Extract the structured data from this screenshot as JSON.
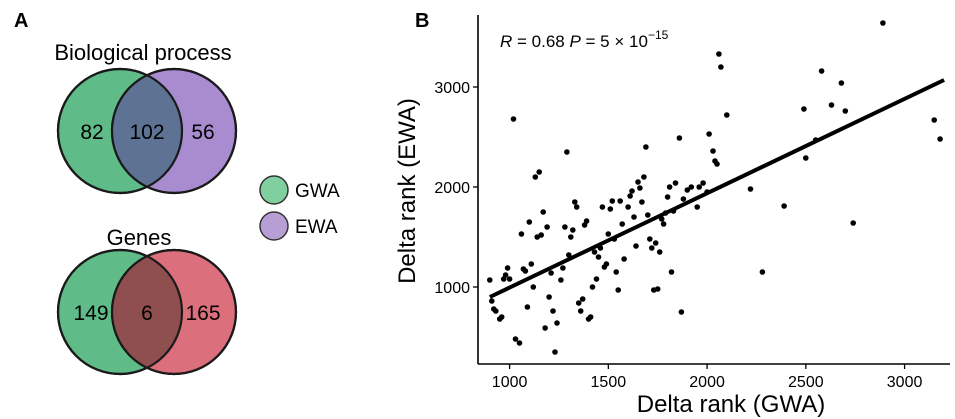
{
  "panel_a": {
    "label": "A",
    "venn_top": {
      "title": "Biological process",
      "left_only": "82",
      "overlap": "102",
      "right_only": "56"
    },
    "venn_bottom": {
      "title": "Genes",
      "left_only": "149",
      "overlap": "6",
      "right_only": "165"
    },
    "legend": [
      {
        "name": "GWA",
        "color": "#7fcf9f"
      },
      {
        "name": "EWA",
        "color": "#b79fd6"
      }
    ],
    "colors": {
      "gwa": "#5fbb88",
      "ewa_top": "#a98cd0",
      "ewa_bottom": "#dc6f7c",
      "overlap_top": "#5e7394",
      "overlap_bottom": "#8f4f4f"
    }
  },
  "panel_b": {
    "label": "B",
    "annotation": {
      "r_sym": "R",
      "r_val": " = 0.68 ",
      "p_sym": "P",
      "p_val": " = 5 × 10",
      "p_exp": "−15"
    }
  },
  "chart_data": {
    "type": "scatter",
    "xlabel": "Delta rank (GWA)",
    "ylabel": "Delta rank (EWA)",
    "xlim": [
      840,
      3230
    ],
    "ylim": [
      230,
      3720
    ],
    "xticks": [
      1000,
      1500,
      2000,
      2500,
      3000
    ],
    "yticks": [
      1000,
      2000,
      3000
    ],
    "xtick_labels": [
      "1000",
      "1500",
      "2000",
      "2500",
      "3000"
    ],
    "ytick_labels": [
      "1000",
      "2000",
      "3000"
    ],
    "grid": false,
    "regression_line": {
      "x": [
        900,
        3200
      ],
      "y": [
        900,
        3070
      ]
    },
    "points": [
      [
        900,
        1070
      ],
      [
        910,
        860
      ],
      [
        920,
        780
      ],
      [
        930,
        760
      ],
      [
        950,
        680
      ],
      [
        960,
        700
      ],
      [
        970,
        1080
      ],
      [
        980,
        1120
      ],
      [
        990,
        1190
      ],
      [
        1000,
        1080
      ],
      [
        1020,
        2680
      ],
      [
        1030,
        480
      ],
      [
        1050,
        440
      ],
      [
        1060,
        1530
      ],
      [
        1070,
        1180
      ],
      [
        1080,
        1160
      ],
      [
        1090,
        800
      ],
      [
        1100,
        1650
      ],
      [
        1110,
        1230
      ],
      [
        1120,
        1000
      ],
      [
        1130,
        2100
      ],
      [
        1140,
        1500
      ],
      [
        1150,
        2150
      ],
      [
        1160,
        1520
      ],
      [
        1170,
        1750
      ],
      [
        1180,
        590
      ],
      [
        1190,
        1600
      ],
      [
        1200,
        900
      ],
      [
        1210,
        1140
      ],
      [
        1220,
        760
      ],
      [
        1230,
        350
      ],
      [
        1240,
        640
      ],
      [
        1260,
        1070
      ],
      [
        1270,
        1190
      ],
      [
        1280,
        1600
      ],
      [
        1290,
        2350
      ],
      [
        1300,
        1320
      ],
      [
        1310,
        1500
      ],
      [
        1320,
        1570
      ],
      [
        1330,
        1850
      ],
      [
        1340,
        1800
      ],
      [
        1350,
        840
      ],
      [
        1360,
        760
      ],
      [
        1370,
        880
      ],
      [
        1380,
        1620
      ],
      [
        1390,
        1660
      ],
      [
        1400,
        680
      ],
      [
        1410,
        700
      ],
      [
        1420,
        1000
      ],
      [
        1430,
        1350
      ],
      [
        1440,
        1080
      ],
      [
        1450,
        1300
      ],
      [
        1460,
        1390
      ],
      [
        1470,
        1800
      ],
      [
        1480,
        1200
      ],
      [
        1490,
        1230
      ],
      [
        1500,
        1530
      ],
      [
        1510,
        1780
      ],
      [
        1520,
        1860
      ],
      [
        1530,
        1480
      ],
      [
        1540,
        1150
      ],
      [
        1550,
        970
      ],
      [
        1560,
        1860
      ],
      [
        1570,
        1630
      ],
      [
        1580,
        1280
      ],
      [
        1600,
        1800
      ],
      [
        1610,
        1910
      ],
      [
        1620,
        1960
      ],
      [
        1630,
        1700
      ],
      [
        1640,
        1410
      ],
      [
        1650,
        2050
      ],
      [
        1660,
        1990
      ],
      [
        1670,
        1850
      ],
      [
        1680,
        2100
      ],
      [
        1690,
        2400
      ],
      [
        1700,
        1720
      ],
      [
        1710,
        1480
      ],
      [
        1720,
        1390
      ],
      [
        1730,
        970
      ],
      [
        1740,
        1440
      ],
      [
        1750,
        980
      ],
      [
        1760,
        1350
      ],
      [
        1770,
        1680
      ],
      [
        1780,
        1630
      ],
      [
        1790,
        1740
      ],
      [
        1800,
        1900
      ],
      [
        1810,
        2000
      ],
      [
        1820,
        1150
      ],
      [
        1830,
        1760
      ],
      [
        1840,
        2040
      ],
      [
        1860,
        2490
      ],
      [
        1870,
        750
      ],
      [
        1880,
        1880
      ],
      [
        1900,
        1970
      ],
      [
        1920,
        2000
      ],
      [
        1950,
        1800
      ],
      [
        1960,
        2000
      ],
      [
        1980,
        2040
      ],
      [
        2000,
        1950
      ],
      [
        2010,
        2530
      ],
      [
        2030,
        2360
      ],
      [
        2040,
        2260
      ],
      [
        2050,
        2230
      ],
      [
        2060,
        3330
      ],
      [
        2070,
        3200
      ],
      [
        2100,
        2720
      ],
      [
        2220,
        1980
      ],
      [
        2280,
        1150
      ],
      [
        2390,
        1810
      ],
      [
        2490,
        2780
      ],
      [
        2500,
        2290
      ],
      [
        2550,
        2470
      ],
      [
        2580,
        3160
      ],
      [
        2630,
        2820
      ],
      [
        2680,
        3040
      ],
      [
        2700,
        2760
      ],
      [
        2740,
        1640
      ],
      [
        2890,
        3640
      ],
      [
        3150,
        2670
      ],
      [
        3180,
        2480
      ]
    ]
  }
}
